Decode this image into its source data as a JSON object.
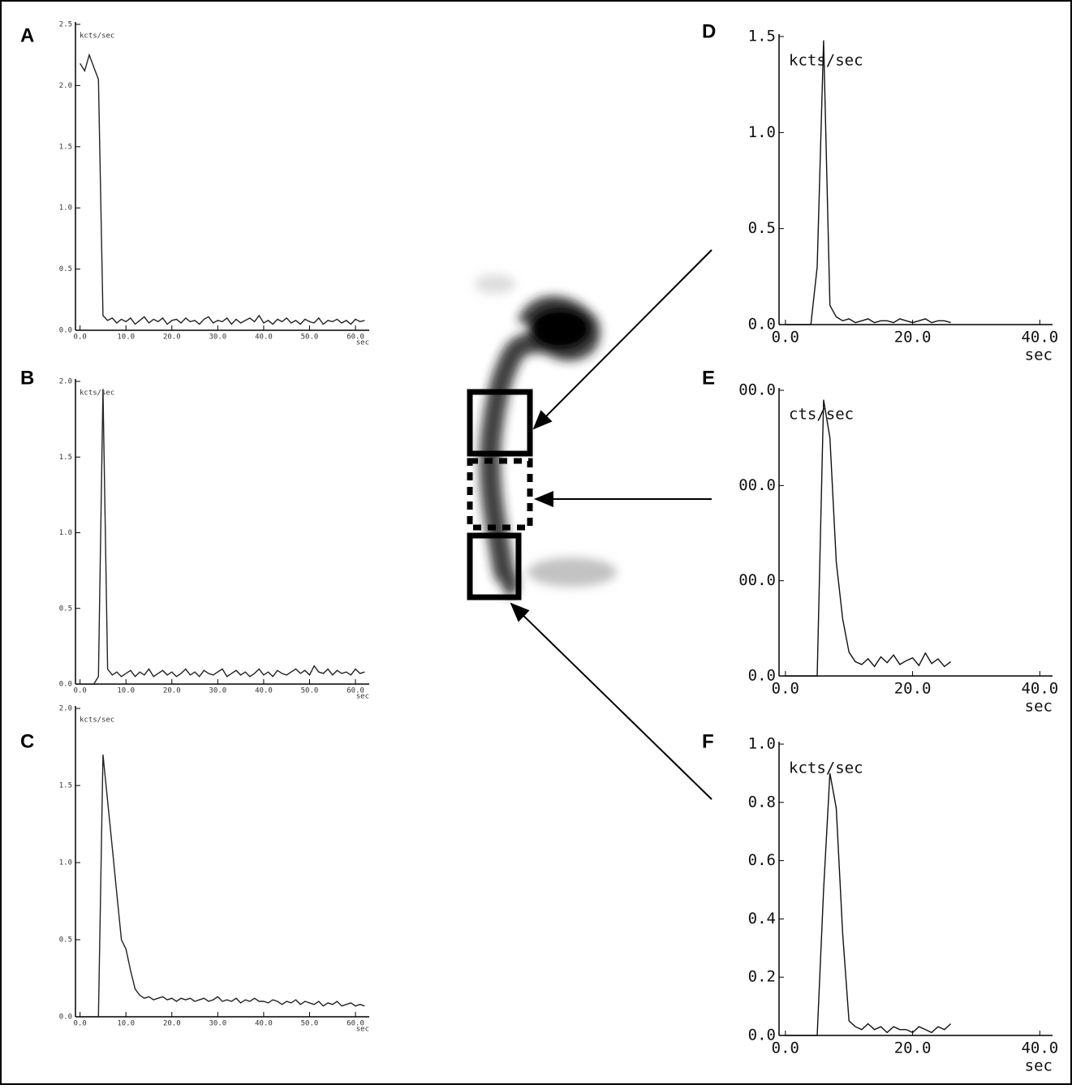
{
  "chart_data": [
    {
      "type": "line",
      "label": "A",
      "y_label": "kcts/sec",
      "x_label": "sec",
      "color": "#222",
      "xlim": [
        -1,
        63
      ],
      "ylim": [
        0,
        2.5
      ],
      "xticks": [
        {
          "value": 0,
          "label": "0.0"
        },
        {
          "value": 10,
          "label": "10.0"
        },
        {
          "value": 20,
          "label": "20.0"
        },
        {
          "value": 30,
          "label": "30.0"
        },
        {
          "value": 40,
          "label": "40.0"
        },
        {
          "value": 50,
          "label": "50.0"
        },
        {
          "value": 60,
          "label": "60.0"
        }
      ],
      "yticks": [
        {
          "value": 0,
          "label": "0.0"
        },
        {
          "value": 0.5,
          "label": "0.5"
        },
        {
          "value": 1,
          "label": "1.0"
        },
        {
          "value": 1.5,
          "label": "1.5"
        },
        {
          "value": 2,
          "label": "2.0"
        },
        {
          "value": 2.5,
          "label": "2.5"
        }
      ],
      "x": [
        0,
        1,
        2,
        3,
        4,
        5,
        6,
        7,
        8,
        9,
        10,
        11,
        12,
        13,
        14,
        15,
        16,
        17,
        18,
        19,
        20,
        21,
        22,
        23,
        24,
        25,
        26,
        27,
        28,
        29,
        30,
        31,
        32,
        33,
        34,
        35,
        36,
        37,
        38,
        39,
        40,
        41,
        42,
        43,
        44,
        45,
        46,
        47,
        48,
        49,
        50,
        51,
        52,
        53,
        54,
        55,
        56,
        57,
        58,
        59,
        60,
        61,
        62
      ],
      "values": [
        2.18,
        2.12,
        2.25,
        2.15,
        2.05,
        0.12,
        0.08,
        0.1,
        0.06,
        0.09,
        0.07,
        0.1,
        0.05,
        0.08,
        0.11,
        0.06,
        0.09,
        0.07,
        0.1,
        0.05,
        0.08,
        0.09,
        0.06,
        0.1,
        0.07,
        0.08,
        0.05,
        0.09,
        0.11,
        0.06,
        0.08,
        0.07,
        0.1,
        0.05,
        0.09,
        0.06,
        0.08,
        0.1,
        0.07,
        0.12,
        0.06,
        0.08,
        0.05,
        0.09,
        0.07,
        0.1,
        0.06,
        0.08,
        0.05,
        0.09,
        0.07,
        0.06,
        0.1,
        0.05,
        0.08,
        0.07,
        0.09,
        0.06,
        0.08,
        0.05,
        0.09,
        0.07,
        0.08
      ]
    },
    {
      "type": "line",
      "label": "B",
      "y_label": "kcts/sec",
      "x_label": "sec",
      "color": "#222",
      "xlim": [
        -1,
        63
      ],
      "ylim": [
        0,
        2.0
      ],
      "xticks": [
        {
          "value": 0,
          "label": "0.0"
        },
        {
          "value": 10,
          "label": "10.0"
        },
        {
          "value": 20,
          "label": "20.0"
        },
        {
          "value": 30,
          "label": "30.0"
        },
        {
          "value": 40,
          "label": "40.0"
        },
        {
          "value": 50,
          "label": "50.0"
        },
        {
          "value": 60,
          "label": "60.0"
        }
      ],
      "yticks": [
        {
          "value": 0,
          "label": "0.0"
        },
        {
          "value": 0.5,
          "label": "0.5"
        },
        {
          "value": 1,
          "label": "1.0"
        },
        {
          "value": 1.5,
          "label": "1.5"
        },
        {
          "value": 2,
          "label": "2.0"
        }
      ],
      "x": [
        0,
        1,
        2,
        3,
        4,
        5,
        6,
        7,
        8,
        9,
        10,
        11,
        12,
        13,
        14,
        15,
        16,
        17,
        18,
        19,
        20,
        21,
        22,
        23,
        24,
        25,
        26,
        27,
        28,
        29,
        30,
        31,
        32,
        33,
        34,
        35,
        36,
        37,
        38,
        39,
        40,
        41,
        42,
        43,
        44,
        45,
        46,
        47,
        48,
        49,
        50,
        51,
        52,
        53,
        54,
        55,
        56,
        57,
        58,
        59,
        60,
        61,
        62
      ],
      "values": [
        0,
        0,
        0,
        0,
        0.05,
        1.95,
        0.1,
        0.06,
        0.08,
        0.05,
        0.07,
        0.09,
        0.05,
        0.08,
        0.06,
        0.1,
        0.05,
        0.07,
        0.09,
        0.06,
        0.08,
        0.05,
        0.07,
        0.1,
        0.06,
        0.08,
        0.05,
        0.09,
        0.07,
        0.06,
        0.08,
        0.1,
        0.05,
        0.07,
        0.09,
        0.06,
        0.08,
        0.05,
        0.07,
        0.1,
        0.06,
        0.08,
        0.05,
        0.09,
        0.07,
        0.06,
        0.08,
        0.1,
        0.07,
        0.09,
        0.06,
        0.12,
        0.08,
        0.07,
        0.1,
        0.06,
        0.09,
        0.07,
        0.08,
        0.06,
        0.1,
        0.07,
        0.08
      ]
    },
    {
      "type": "line",
      "label": "C",
      "y_label": "kcts/sec",
      "x_label": "sec",
      "color": "#222",
      "xlim": [
        -1,
        63
      ],
      "ylim": [
        0,
        2.0
      ],
      "xticks": [
        {
          "value": 0,
          "label": "0.0"
        },
        {
          "value": 10,
          "label": "10.0"
        },
        {
          "value": 20,
          "label": "20.0"
        },
        {
          "value": 30,
          "label": "30.0"
        },
        {
          "value": 40,
          "label": "40.0"
        },
        {
          "value": 50,
          "label": "50.0"
        },
        {
          "value": 60,
          "label": "60.0"
        }
      ],
      "yticks": [
        {
          "value": 0,
          "label": "0.0"
        },
        {
          "value": 0.5,
          "label": "0.5"
        },
        {
          "value": 1,
          "label": "1.0"
        },
        {
          "value": 1.5,
          "label": "1.5"
        },
        {
          "value": 2,
          "label": "2.0"
        }
      ],
      "x": [
        0,
        1,
        2,
        3,
        4,
        5,
        6,
        7,
        8,
        9,
        10,
        11,
        12,
        13,
        14,
        15,
        16,
        17,
        18,
        19,
        20,
        21,
        22,
        23,
        24,
        25,
        26,
        27,
        28,
        29,
        30,
        31,
        32,
        33,
        34,
        35,
        36,
        37,
        38,
        39,
        40,
        41,
        42,
        43,
        44,
        45,
        46,
        47,
        48,
        49,
        50,
        51,
        52,
        53,
        54,
        55,
        56,
        57,
        58,
        59,
        60,
        61,
        62
      ],
      "values": [
        0,
        0,
        0,
        0,
        0,
        1.7,
        1.4,
        1.1,
        0.8,
        0.5,
        0.44,
        0.3,
        0.18,
        0.14,
        0.12,
        0.13,
        0.11,
        0.12,
        0.13,
        0.11,
        0.12,
        0.1,
        0.12,
        0.11,
        0.12,
        0.1,
        0.11,
        0.12,
        0.1,
        0.11,
        0.13,
        0.1,
        0.11,
        0.1,
        0.12,
        0.09,
        0.11,
        0.1,
        0.12,
        0.1,
        0.1,
        0.09,
        0.11,
        0.1,
        0.08,
        0.1,
        0.09,
        0.11,
        0.08,
        0.1,
        0.09,
        0.08,
        0.1,
        0.07,
        0.09,
        0.08,
        0.1,
        0.07,
        0.08,
        0.09,
        0.07,
        0.08,
        0.07
      ]
    },
    {
      "type": "line",
      "label": "D",
      "y_label": "kcts/sec",
      "x_label": "sec",
      "color": "#111",
      "xlim": [
        -1,
        42
      ],
      "ylim": [
        0,
        1.5
      ],
      "xticks": [
        {
          "value": 0,
          "label": "0.0"
        },
        {
          "value": 20,
          "label": "20.0"
        },
        {
          "value": 40,
          "label": "40.0"
        }
      ],
      "yticks": [
        {
          "value": 0,
          "label": "0.0"
        },
        {
          "value": 0.5,
          "label": "0.5"
        },
        {
          "value": 1,
          "label": "1.0"
        },
        {
          "value": 1.5,
          "label": "1.5"
        }
      ],
      "x": [
        0,
        1,
        2,
        3,
        4,
        5,
        6,
        7,
        8,
        9,
        10,
        11,
        12,
        13,
        14,
        15,
        16,
        17,
        18,
        19,
        20,
        21,
        22,
        23,
        24,
        25,
        26
      ],
      "values": [
        0,
        0,
        0,
        0,
        0,
        0.3,
        1.48,
        0.1,
        0.04,
        0.02,
        0.03,
        0.01,
        0.02,
        0.03,
        0.01,
        0.02,
        0.02,
        0.01,
        0.03,
        0.02,
        0.01,
        0.02,
        0.03,
        0.01,
        0.02,
        0.02,
        0.01
      ]
    },
    {
      "type": "line",
      "label": "E",
      "y_label": "cts/sec",
      "x_label": "sec",
      "color": "#111",
      "xlim": [
        -1,
        42
      ],
      "ylim": [
        0,
        300
      ],
      "xticks": [
        {
          "value": 0,
          "label": "0.0"
        },
        {
          "value": 20,
          "label": "20.0"
        },
        {
          "value": 40,
          "label": "40.0"
        }
      ],
      "yticks": [
        {
          "value": 0,
          "label": "0.0"
        },
        {
          "value": 100,
          "label": "00.0"
        },
        {
          "value": 200,
          "label": "00.0"
        },
        {
          "value": 300,
          "label": "00.0"
        }
      ],
      "x": [
        0,
        1,
        2,
        3,
        4,
        5,
        6,
        7,
        8,
        9,
        10,
        11,
        12,
        13,
        14,
        15,
        16,
        17,
        18,
        19,
        20,
        21,
        22,
        23,
        24,
        25,
        26
      ],
      "values": [
        0,
        0,
        0,
        0,
        0,
        0,
        290,
        250,
        120,
        60,
        25,
        15,
        12,
        18,
        10,
        20,
        14,
        22,
        12,
        16,
        19,
        11,
        24,
        13,
        18,
        10,
        15
      ]
    },
    {
      "type": "line",
      "label": "F",
      "y_label": "kcts/sec",
      "x_label": "sec",
      "color": "#111",
      "xlim": [
        -1,
        42
      ],
      "ylim": [
        0,
        1.0
      ],
      "xticks": [
        {
          "value": 0,
          "label": "0.0"
        },
        {
          "value": 20,
          "label": "20.0"
        },
        {
          "value": 40,
          "label": "40.0"
        }
      ],
      "yticks": [
        {
          "value": 0,
          "label": "0.0"
        },
        {
          "value": 0.2,
          "label": "0.2"
        },
        {
          "value": 0.4,
          "label": "0.4"
        },
        {
          "value": 0.6,
          "label": "0.6"
        },
        {
          "value": 0.8,
          "label": "0.8"
        },
        {
          "value": 1,
          "label": "1.0"
        }
      ],
      "x": [
        0,
        1,
        2,
        3,
        4,
        5,
        6,
        7,
        8,
        9,
        10,
        11,
        12,
        13,
        14,
        15,
        16,
        17,
        18,
        19,
        20,
        21,
        22,
        23,
        24,
        25,
        26
      ],
      "values": [
        0,
        0,
        0,
        0,
        0,
        0,
        0.5,
        0.9,
        0.78,
        0.35,
        0.05,
        0.03,
        0.02,
        0.04,
        0.02,
        0.03,
        0.01,
        0.03,
        0.02,
        0.02,
        0.01,
        0.03,
        0.02,
        0.01,
        0.03,
        0.02,
        0.04
      ]
    }
  ]
}
